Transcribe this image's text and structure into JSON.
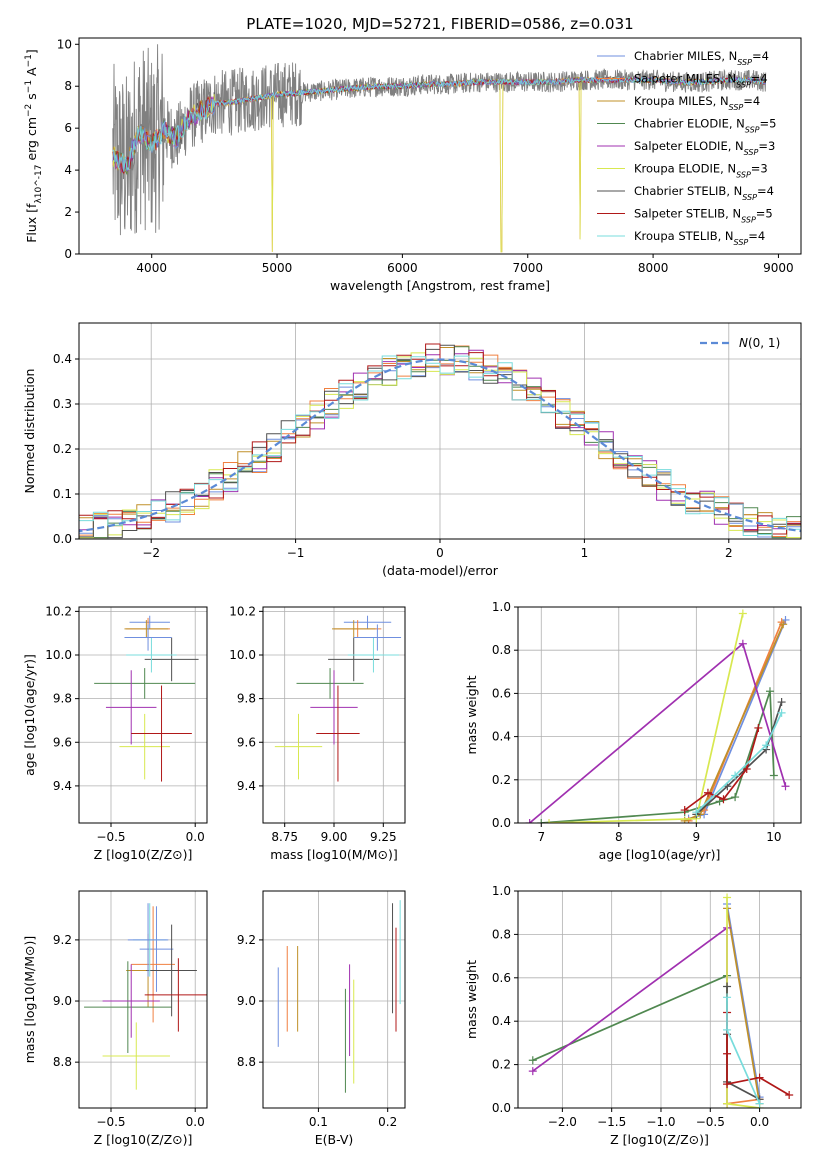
{
  "title": "PLATE=1020, MJD=52721, FIBERID=0586, z=0.031",
  "colors": [
    "#6f8fdf",
    "#f08040",
    "#c0902a",
    "#508850",
    "#a030b0",
    "#d8e850",
    "#505050",
    "#b01818",
    "#78dcdc"
  ],
  "chart_data": [
    {
      "type": "line",
      "name": "spectrum",
      "xlabel": "wavelength [Angstrom, rest frame]",
      "ylabel": "Flux [f_λ10^-17 erg cm^-2 s^-1 A^-1]",
      "xlim": [
        3420,
        9180
      ],
      "ylim": [
        0,
        10.3
      ],
      "xticks": [
        4000,
        5000,
        6000,
        7000,
        8000,
        9000
      ],
      "xticklabels": [
        "4000",
        "5000",
        "6000",
        "7000",
        "8000",
        "9000"
      ],
      "yticks": [
        0,
        2,
        4,
        6,
        8,
        10
      ],
      "yticklabels": [
        "0",
        "2",
        "4",
        "6",
        "8",
        "10"
      ],
      "grid": false,
      "legend_position": "right",
      "legend": [
        {
          "label": "Chabrier MILES, N_SSP=4"
        },
        {
          "label": "Salpeter MILES, N_SSP=4"
        },
        {
          "label": "Kroupa MILES, N_SSP=4"
        },
        {
          "label": "Chabrier ELODIE, N_SSP=5"
        },
        {
          "label": "Salpeter ELODIE, N_SSP=3"
        },
        {
          "label": "Kroupa ELODIE, N_SSP=3"
        },
        {
          "label": "Chabrier STELIB, N_SSP=4"
        },
        {
          "label": "Salpeter STELIB, N_SSP=5"
        },
        {
          "label": "Kroupa STELIB, N_SSP=4"
        }
      ],
      "model_continuum": {
        "x": [
          3700,
          3800,
          3900,
          4000,
          4100,
          4200,
          4300,
          4400,
          4500,
          4600,
          4800,
          5000,
          5200,
          5400,
          5600,
          5800,
          6000,
          6200,
          6400,
          6600,
          6800,
          7000,
          7200,
          7400,
          7600,
          7800,
          8000,
          8200,
          8400,
          8600,
          8800,
          8900
        ],
        "y": [
          4.6,
          4.2,
          5.8,
          5.2,
          5.9,
          5.5,
          6.5,
          6.8,
          7.2,
          7.2,
          7.4,
          7.6,
          7.7,
          7.8,
          7.9,
          8.0,
          8.0,
          8.1,
          8.1,
          8.2,
          8.2,
          8.2,
          8.2,
          8.3,
          8.3,
          8.3,
          8.3,
          8.2,
          8.2,
          8.3,
          8.3,
          8.2
        ]
      },
      "sharp_features": [
        {
          "x": 4960,
          "y": 0.1
        },
        {
          "x": 6790,
          "y": 0.1
        },
        {
          "x": 7420,
          "y": 0.7
        }
      ]
    },
    {
      "type": "histogram",
      "name": "residuals",
      "xlabel": "(data-model)/error",
      "ylabel": "Normed distribution",
      "xlim": [
        -2.5,
        2.5
      ],
      "ylim": [
        0,
        0.48
      ],
      "xticks": [
        -2,
        -1,
        0,
        1,
        2
      ],
      "xticklabels": [
        "−2",
        "−1",
        "0",
        "1",
        "2"
      ],
      "yticks": [
        0,
        0.1,
        0.2,
        0.3,
        0.4
      ],
      "yticklabels": [
        "0.0",
        "0.1",
        "0.2",
        "0.3",
        "0.4"
      ],
      "grid": true,
      "legend": [
        {
          "label": "N(0,1)"
        }
      ],
      "bin_width": 0.1
    },
    {
      "type": "scatter",
      "name": "age-vs-Z",
      "xlabel": "Z [log10(Z/Z⊙)]",
      "ylabel": "age [log10(age/yr)]",
      "xlim": [
        -0.69,
        0.07
      ],
      "ylim": [
        9.23,
        10.22
      ],
      "xticks": [
        -0.5,
        0.0
      ],
      "xticklabels": [
        "−0.5",
        "0.0"
      ],
      "yticks": [
        9.4,
        9.6,
        9.8,
        10.0,
        10.2
      ],
      "yticklabels": [
        "9.4",
        "9.6",
        "9.8",
        "10.0",
        "10.2"
      ],
      "grid": true,
      "points": [
        {
          "x": -0.27,
          "xe": 0.12,
          "y": 10.15,
          "ye": 0.03
        },
        {
          "x": -0.28,
          "xe": 0.13,
          "y": 10.12,
          "ye": 0.05
        },
        {
          "x": -0.29,
          "xe": 0.13,
          "y": 10.12,
          "ye": 0.04
        },
        {
          "x": -0.3,
          "xe": 0.3,
          "y": 9.87,
          "ye": 0.07
        },
        {
          "x": -0.38,
          "xe": 0.15,
          "y": 9.76,
          "ye": 0.17
        },
        {
          "x": -0.3,
          "xe": 0.15,
          "y": 9.58,
          "ye": 0.15
        },
        {
          "x": -0.14,
          "xe": 0.16,
          "y": 9.98,
          "ye": 0.1
        },
        {
          "x": -0.2,
          "xe": 0.18,
          "y": 9.64,
          "ye": 0.22
        },
        {
          "x": -0.26,
          "xe": 0.15,
          "y": 10.0,
          "ye": 0.08
        },
        {
          "x": -0.28,
          "xe": 0.14,
          "y": 10.08,
          "ye": 0.06
        }
      ]
    },
    {
      "type": "scatter",
      "name": "age-vs-mass",
      "xlabel": "mass [log10(M/M⊙)]",
      "ylabel": "",
      "xlim": [
        8.64,
        9.36
      ],
      "ylim": [
        9.23,
        10.22
      ],
      "xticks": [
        8.75,
        9.0,
        9.25
      ],
      "xticklabels": [
        "8.75",
        "9.00",
        "9.25"
      ],
      "yticks": [
        9.4,
        9.6,
        9.8,
        10.0,
        10.2
      ],
      "yticklabels": [
        "9.4",
        "9.6",
        "9.8",
        "10.0",
        "10.2"
      ],
      "grid": true,
      "points": [
        {
          "x": 9.17,
          "xe": 0.12,
          "y": 10.15,
          "ye": 0.03
        },
        {
          "x": 9.12,
          "xe": 0.12,
          "y": 10.12,
          "ye": 0.04
        },
        {
          "x": 9.1,
          "xe": 0.11,
          "y": 10.12,
          "ye": 0.04
        },
        {
          "x": 8.98,
          "xe": 0.17,
          "y": 9.87,
          "ye": 0.07
        },
        {
          "x": 9.0,
          "xe": 0.12,
          "y": 9.76,
          "ye": 0.17
        },
        {
          "x": 8.82,
          "xe": 0.12,
          "y": 9.58,
          "ye": 0.15
        },
        {
          "x": 9.1,
          "xe": 0.13,
          "y": 9.98,
          "ye": 0.1
        },
        {
          "x": 9.02,
          "xe": 0.11,
          "y": 9.64,
          "ye": 0.22
        },
        {
          "x": 9.2,
          "xe": 0.13,
          "y": 10.0,
          "ye": 0.08
        },
        {
          "x": 9.22,
          "xe": 0.12,
          "y": 10.08,
          "ye": 0.06
        }
      ]
    },
    {
      "type": "line",
      "name": "weight-vs-age",
      "xlabel": "age [log10(age/yr)]",
      "ylabel": "mass weight",
      "xlim": [
        6.7,
        10.35
      ],
      "ylim": [
        0,
        1.0
      ],
      "xticks": [
        7,
        8,
        9,
        10
      ],
      "xticklabels": [
        "7",
        "8",
        "9",
        "10"
      ],
      "yticks": [
        0,
        0.2,
        0.4,
        0.6,
        0.8,
        1.0
      ],
      "yticklabels": [
        "0.0",
        "0.2",
        "0.4",
        "0.6",
        "0.8",
        "1.0"
      ],
      "grid": true,
      "series": [
        {
          "x": [
            8.9,
            9.1,
            10.15
          ],
          "y": [
            0.02,
            0.04,
            0.94
          ]
        },
        {
          "x": [
            8.9,
            9.1,
            10.1
          ],
          "y": [
            0.01,
            0.06,
            0.93
          ]
        },
        {
          "x": [
            8.85,
            9.05,
            10.12
          ],
          "y": [
            0.01,
            0.04,
            0.92
          ]
        },
        {
          "x": [
            7.0,
            8.85,
            9.3,
            9.5,
            9.95,
            10.0
          ],
          "y": [
            0.0,
            0.05,
            0.1,
            0.12,
            0.61,
            0.22
          ]
        },
        {
          "x": [
            6.85,
            9.6,
            10.15
          ],
          "y": [
            0.0,
            0.83,
            0.17
          ]
        },
        {
          "x": [
            7.1,
            9.0,
            9.6
          ],
          "y": [
            0.0,
            0.02,
            0.97
          ]
        },
        {
          "x": [
            9.0,
            9.4,
            9.9,
            10.1
          ],
          "y": [
            0.04,
            0.17,
            0.34,
            0.56
          ]
        },
        {
          "x": [
            8.85,
            9.15,
            9.35,
            9.65,
            9.8
          ],
          "y": [
            0.06,
            0.14,
            0.11,
            0.25,
            0.44
          ]
        },
        {
          "x": [
            9.0,
            9.5,
            9.9,
            10.1
          ],
          "y": [
            0.05,
            0.22,
            0.36,
            0.51
          ]
        }
      ]
    },
    {
      "type": "scatter",
      "name": "mass-vs-Z",
      "xlabel": "Z [log10(Z/Z⊙)]",
      "ylabel": "mass [log10(M/M⊙)]",
      "xlim": [
        -0.69,
        0.07
      ],
      "ylim": [
        8.65,
        9.36
      ],
      "xticks": [
        -0.5,
        0.0
      ],
      "xticklabels": [
        "−0.5",
        "0.0"
      ],
      "yticks": [
        8.8,
        9.0,
        9.2
      ],
      "yticklabels": [
        "8.8",
        "9.0",
        "9.2"
      ],
      "grid": true,
      "points": [
        {
          "x": -0.23,
          "xe": 0.1,
          "y": 9.17,
          "ye": 0.14
        },
        {
          "x": -0.25,
          "xe": 0.13,
          "y": 9.12,
          "ye": 0.19
        },
        {
          "x": -0.28,
          "xe": 0.13,
          "y": 9.1,
          "ye": 0.12
        },
        {
          "x": -0.4,
          "xe": 0.26,
          "y": 8.98,
          "ye": 0.15
        },
        {
          "x": -0.38,
          "xe": 0.17,
          "y": 9.0,
          "ye": 0.12
        },
        {
          "x": -0.35,
          "xe": 0.2,
          "y": 8.82,
          "ye": 0.11
        },
        {
          "x": -0.14,
          "xe": 0.15,
          "y": 9.1,
          "ye": 0.15
        },
        {
          "x": -0.1,
          "xe": 0.2,
          "y": 9.02,
          "ye": 0.12
        },
        {
          "x": -0.27,
          "xe": 0.1,
          "y": 9.2,
          "ye": 0.12
        },
        {
          "x": -0.28,
          "xe": 0.12,
          "y": 9.2,
          "ye": 0.12
        }
      ]
    },
    {
      "type": "scatter",
      "name": "mass-vs-ebv",
      "xlabel": "E(B-V)",
      "ylabel": "",
      "xlim": [
        0.02,
        0.225
      ],
      "ylim": [
        8.65,
        9.36
      ],
      "xticks": [
        0.1,
        0.2
      ],
      "xticklabels": [
        "0.1",
        "0.2"
      ],
      "yticks": [
        8.8,
        9.0,
        9.2
      ],
      "yticklabels": [
        "8.8",
        "9.0",
        "9.2"
      ],
      "grid": true,
      "points": [
        {
          "x": 0.042,
          "y": 8.98,
          "ye": 0.13
        },
        {
          "x": 0.055,
          "y": 9.04,
          "ye": 0.14
        },
        {
          "x": 0.07,
          "y": 9.04,
          "ye": 0.14
        },
        {
          "x": 0.139,
          "y": 8.87,
          "ye": 0.17
        },
        {
          "x": 0.145,
          "y": 8.97,
          "ye": 0.15
        },
        {
          "x": 0.151,
          "y": 8.9,
          "ye": 0.17
        },
        {
          "x": 0.207,
          "y": 9.14,
          "ye": 0.18
        },
        {
          "x": 0.212,
          "y": 9.07,
          "ye": 0.17
        },
        {
          "x": 0.218,
          "y": 9.16,
          "ye": 0.17
        }
      ]
    },
    {
      "type": "line",
      "name": "weight-vs-Z",
      "xlabel": "Z [log10(Z/Z⊙)]",
      "ylabel": "mass weight",
      "xlim": [
        -2.45,
        0.42
      ],
      "ylim": [
        0,
        1.0
      ],
      "xticks": [
        -2.0,
        -1.5,
        -1.0,
        -0.5,
        0.0
      ],
      "xticklabels": [
        "−2.0",
        "−1.5",
        "−1.0",
        "−0.5",
        "0.0"
      ],
      "yticks": [
        0,
        0.2,
        0.4,
        0.6,
        0.8,
        1.0
      ],
      "yticklabels": [
        "0.0",
        "0.2",
        "0.4",
        "0.6",
        "0.8",
        "1.0"
      ],
      "grid": true,
      "series": [
        {
          "x": [
            -0.33,
            0.0
          ],
          "y": [
            0.94,
            0.05
          ]
        },
        {
          "x": [
            -0.33,
            0.0
          ],
          "y": [
            0.02,
            0.04
          ]
        },
        {
          "x": [
            -0.33,
            0.0
          ],
          "y": [
            0.92,
            0.02
          ]
        },
        {
          "x": [
            -2.3,
            -0.33,
            -0.33
          ],
          "y": [
            0.22,
            0.61,
            0.12
          ]
        },
        {
          "x": [
            -2.3,
            -0.33,
            -0.33
          ],
          "y": [
            0.17,
            0.83,
            0.02
          ]
        },
        {
          "x": [
            -0.33,
            -0.33,
            0.0
          ],
          "y": [
            0.97,
            0.02,
            0.0
          ]
        },
        {
          "x": [
            -0.33,
            -0.33,
            -0.33,
            0.0
          ],
          "y": [
            0.56,
            0.34,
            0.12,
            0.04
          ]
        },
        {
          "x": [
            -0.33,
            -0.33,
            -0.33,
            0.0,
            0.3
          ],
          "y": [
            0.44,
            0.25,
            0.11,
            0.14,
            0.06
          ]
        },
        {
          "x": [
            -0.33,
            -0.33,
            0.0
          ],
          "y": [
            0.51,
            0.36,
            0.02
          ]
        }
      ]
    }
  ]
}
